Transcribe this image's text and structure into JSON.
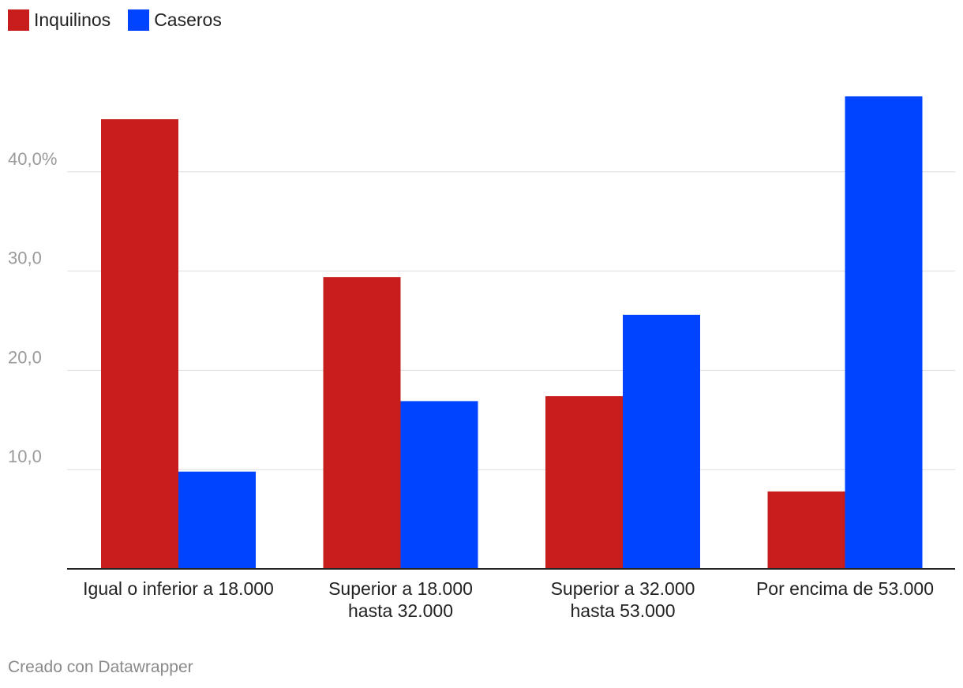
{
  "chart_data": {
    "type": "bar",
    "categories": [
      [
        "Igual o inferior a 18.000"
      ],
      [
        "Superior a 18.000",
        "hasta 32.000"
      ],
      [
        "Superior a 32.000",
        "hasta 53.000"
      ],
      [
        "Por encima de 53.000"
      ]
    ],
    "series": [
      {
        "name": "Inquilinos",
        "color": "#c71e1d",
        "values": [
          45.3,
          29.4,
          17.4,
          7.8
        ]
      },
      {
        "name": "Caseros",
        "color": "#0044ff",
        "values": [
          9.8,
          16.9,
          25.6,
          47.6
        ]
      }
    ],
    "yticks": [
      10,
      20,
      30,
      40
    ],
    "ytick_labels": [
      "10,0",
      "20,0",
      "30,0",
      "40,0%"
    ],
    "ylim": [
      0,
      50
    ],
    "grid": true,
    "legend_position": "top-left"
  },
  "legend": {
    "items": [
      {
        "label": "Inquilinos",
        "color": "#c71e1d"
      },
      {
        "label": "Caseros",
        "color": "#0044ff"
      }
    ]
  },
  "footer": {
    "credit": "Creado con Datawrapper"
  }
}
